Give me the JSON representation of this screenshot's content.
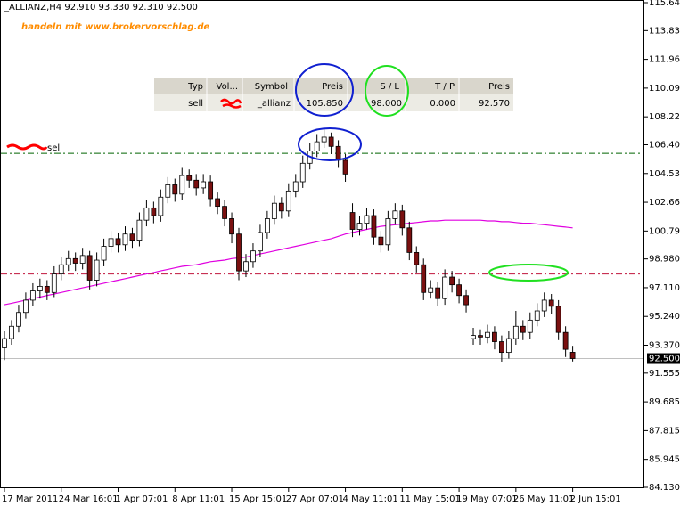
{
  "header": {
    "symbol_line": "_ALLIANZ,H4  92.910 93.330 92.310 92.500",
    "watermark": "handeln mit www.brokervorschlag.de"
  },
  "order_table": {
    "columns": [
      "Typ",
      "Vol...",
      "Symbol",
      "Preis",
      "S / L",
      "T / P",
      "Preis"
    ],
    "row": {
      "type": "sell",
      "symbol": "_allianz",
      "price": "105.850",
      "sl": "98.000",
      "tp": "0.000",
      "current": "92.570"
    }
  },
  "chart_data": {
    "type": "candlestick",
    "order_label": "sell",
    "ylim": [
      84.13,
      115.645
    ],
    "yticks": [
      {
        "value": 115.645,
        "label": "115.645"
      },
      {
        "value": 113.83,
        "label": "113.830"
      },
      {
        "value": 111.96,
        "label": "111.960"
      },
      {
        "value": 110.09,
        "label": "110.090"
      },
      {
        "value": 108.22,
        "label": "108.220"
      },
      {
        "value": 106.405,
        "label": "106.405"
      },
      {
        "value": 104.535,
        "label": "104.535"
      },
      {
        "value": 102.665,
        "label": "102.665"
      },
      {
        "value": 100.795,
        "label": "100.795"
      },
      {
        "value": 98.98,
        "label": "98.980"
      },
      {
        "value": 97.11,
        "label": "97.110"
      },
      {
        "value": 95.24,
        "label": "95.240"
      },
      {
        "value": 93.37,
        "label": "93.370"
      },
      {
        "value": 91.555,
        "label": "91.555"
      },
      {
        "value": 89.685,
        "label": "89.685"
      },
      {
        "value": 87.815,
        "label": "87.815"
      },
      {
        "value": 85.945,
        "label": "85.945"
      },
      {
        "value": 84.13,
        "label": "84.130"
      }
    ],
    "categories": [
      "17 Mar 2011",
      null,
      null,
      null,
      null,
      null,
      null,
      null,
      "24 Mar 16:01",
      null,
      null,
      null,
      null,
      null,
      null,
      null,
      "1 Apr 07:01",
      null,
      null,
      null,
      null,
      null,
      null,
      null,
      "8 Apr 11:01",
      null,
      null,
      null,
      null,
      null,
      null,
      null,
      "15 Apr 15:01",
      null,
      null,
      null,
      null,
      null,
      null,
      null,
      "27 Apr 07:01",
      null,
      null,
      null,
      null,
      null,
      null,
      null,
      "4 May 11:01",
      null,
      null,
      null,
      null,
      null,
      null,
      null,
      "11 May 15:01",
      null,
      null,
      null,
      null,
      null,
      null,
      null,
      "19 May 07:01",
      null,
      null,
      null,
      null,
      null,
      null,
      null,
      "26 May 11:01",
      null,
      null,
      null,
      null,
      null,
      null,
      null,
      "2 Jun 15:01"
    ],
    "open": [
      93.2,
      93.8,
      94.6,
      95.5,
      96.3,
      96.9,
      97.2,
      96.8,
      98.0,
      98.6,
      99.0,
      98.7,
      99.2,
      97.6,
      98.9,
      99.8,
      100.3,
      99.9,
      100.6,
      100.2,
      101.5,
      102.3,
      101.8,
      103.0,
      103.8,
      103.2,
      104.4,
      104.1,
      103.6,
      104.0,
      102.9,
      102.4,
      101.6,
      100.6,
      98.2,
      98.8,
      99.5,
      100.7,
      101.6,
      102.6,
      102.1,
      103.4,
      104.0,
      105.2,
      106.0,
      106.6,
      106.9,
      106.3,
      105.4,
      102.0,
      100.9,
      101.3,
      101.8,
      100.4,
      99.9,
      101.6,
      102.1,
      101.0,
      99.4,
      98.6,
      96.8,
      97.1,
      96.4,
      97.8,
      97.3,
      96.6,
      93.8,
      94.0,
      93.9,
      94.2,
      93.6,
      92.9,
      93.8,
      94.6,
      94.2,
      95.0,
      95.6,
      96.3,
      95.9,
      94.2,
      92.91
    ],
    "high": [
      94.3,
      95.0,
      96.0,
      96.8,
      97.4,
      97.7,
      97.6,
      98.5,
      99.1,
      99.5,
      99.4,
      99.7,
      99.5,
      99.4,
      100.3,
      100.8,
      100.7,
      101.1,
      101.0,
      102.0,
      102.8,
      102.7,
      103.5,
      104.3,
      104.2,
      104.9,
      104.8,
      104.5,
      104.5,
      104.4,
      103.3,
      102.8,
      102.0,
      101.0,
      99.3,
      100.0,
      101.2,
      102.1,
      103.1,
      103.0,
      103.9,
      104.5,
      105.7,
      106.5,
      107.1,
      107.4,
      107.2,
      106.7,
      105.8,
      102.6,
      101.8,
      102.3,
      102.2,
      100.8,
      102.1,
      102.6,
      102.5,
      101.4,
      99.8,
      99.0,
      97.6,
      97.5,
      98.3,
      98.2,
      97.7,
      97.0,
      94.5,
      94.4,
      94.7,
      94.6,
      94.0,
      94.3,
      95.6,
      95.0,
      95.5,
      96.1,
      96.8,
      96.7,
      96.3,
      94.6,
      93.33
    ],
    "low": [
      92.4,
      93.4,
      94.2,
      95.1,
      95.9,
      96.4,
      96.3,
      96.5,
      97.6,
      98.2,
      98.2,
      98.3,
      97.0,
      97.2,
      98.5,
      99.4,
      99.4,
      99.5,
      99.7,
      99.8,
      101.1,
      101.3,
      101.4,
      102.6,
      102.7,
      102.8,
      103.6,
      103.1,
      103.2,
      102.4,
      101.9,
      101.1,
      100.0,
      97.6,
      97.8,
      98.4,
      99.1,
      100.3,
      101.2,
      101.6,
      101.7,
      103.0,
      103.6,
      104.8,
      105.6,
      106.2,
      105.8,
      104.9,
      104.0,
      100.4,
      100.5,
      100.9,
      99.9,
      99.4,
      99.5,
      101.2,
      100.5,
      98.9,
      98.1,
      96.3,
      96.4,
      95.9,
      96.0,
      96.8,
      96.1,
      95.5,
      93.4,
      93.4,
      93.5,
      93.1,
      92.3,
      92.5,
      93.4,
      93.7,
      93.8,
      94.6,
      95.2,
      95.4,
      93.7,
      92.6,
      92.31
    ],
    "close": [
      93.8,
      94.6,
      95.5,
      96.3,
      96.9,
      97.2,
      96.8,
      98.0,
      98.6,
      99.0,
      98.7,
      99.2,
      97.6,
      98.9,
      99.8,
      100.3,
      99.9,
      100.6,
      100.2,
      101.5,
      102.3,
      101.8,
      103.0,
      103.8,
      103.2,
      104.4,
      104.1,
      103.6,
      104.0,
      102.9,
      102.4,
      101.6,
      100.6,
      98.2,
      98.8,
      99.5,
      100.7,
      101.6,
      102.6,
      102.1,
      103.4,
      104.0,
      105.2,
      106.0,
      106.6,
      106.9,
      106.3,
      105.4,
      104.5,
      100.9,
      101.3,
      101.8,
      100.4,
      99.9,
      101.6,
      102.1,
      101.0,
      99.4,
      98.6,
      96.8,
      97.1,
      96.4,
      97.8,
      97.3,
      96.6,
      96.0,
      94.0,
      93.9,
      94.2,
      93.6,
      92.9,
      93.8,
      94.6,
      94.2,
      95.0,
      95.6,
      96.3,
      95.9,
      94.2,
      93.1,
      92.5
    ],
    "up_color": "#ffffff",
    "down_color": "#7a1010",
    "ma": {
      "color": "#e000e0",
      "values": [
        96.0,
        96.1,
        96.2,
        96.3,
        96.4,
        96.5,
        96.6,
        96.7,
        96.8,
        96.9,
        97.0,
        97.1,
        97.2,
        97.3,
        97.4,
        97.5,
        97.6,
        97.7,
        97.8,
        97.9,
        98.0,
        98.1,
        98.2,
        98.3,
        98.4,
        98.5,
        98.55,
        98.6,
        98.7,
        98.8,
        98.85,
        98.9,
        99.0,
        99.05,
        99.1,
        99.2,
        99.3,
        99.4,
        99.5,
        99.6,
        99.7,
        99.8,
        99.9,
        100.0,
        100.1,
        100.2,
        100.3,
        100.45,
        100.6,
        100.7,
        100.8,
        100.9,
        101.0,
        101.1,
        101.15,
        101.2,
        101.25,
        101.3,
        101.35,
        101.4,
        101.45,
        101.45,
        101.5,
        101.5,
        101.5,
        101.5,
        101.5,
        101.5,
        101.45,
        101.45,
        101.4,
        101.4,
        101.35,
        101.3,
        101.3,
        101.25,
        101.2,
        101.15,
        101.1,
        101.05,
        101.0
      ]
    },
    "levels": [
      {
        "value": 105.85,
        "color": "#006400"
      },
      {
        "value": 98.0,
        "color": "#c0143c"
      }
    ],
    "last_price": {
      "value": 92.5,
      "label": "92.500"
    }
  }
}
